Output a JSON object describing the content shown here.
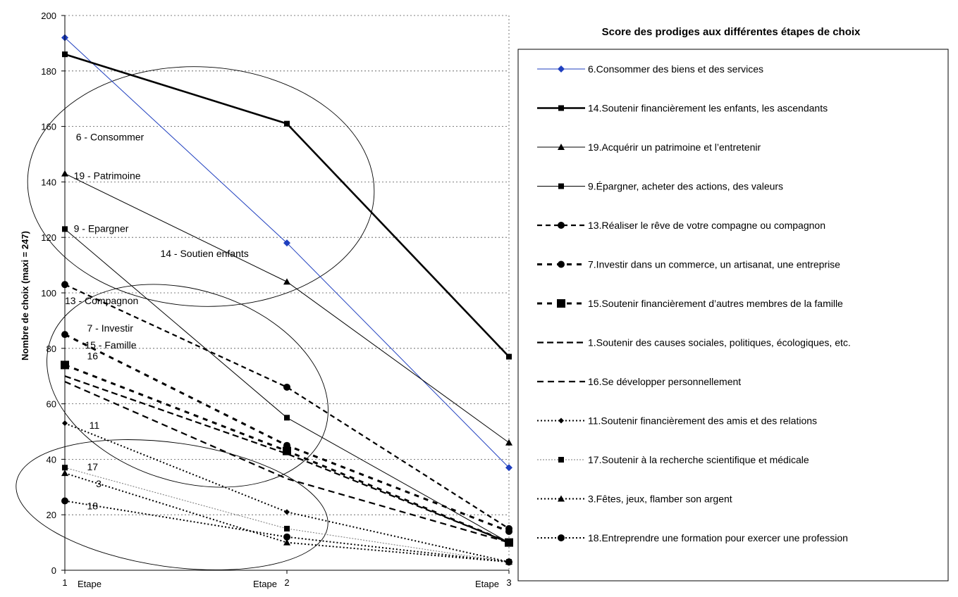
{
  "chart_data": {
    "type": "line",
    "title": "Score des prodiges aux différentes étapes de choix",
    "ylabel": "Nombre de choix (maxi = 247)",
    "ylim": [
      0,
      200
    ],
    "yticks": [
      0,
      20,
      40,
      60,
      80,
      100,
      120,
      140,
      160,
      180,
      200
    ],
    "x": [
      1,
      2,
      3
    ],
    "x_tick_labels": [
      "1",
      "2",
      "3"
    ],
    "x_stage_labels": [
      "Etape",
      "Etape",
      "Etape"
    ],
    "grid": "horizontal dotted",
    "legend_position": "right",
    "series": [
      {
        "name": "6.Consommer des biens et des services",
        "values": [
          192,
          118,
          37
        ],
        "color": "#1f3fbf",
        "marker": "diamond",
        "dash": "",
        "width": 1,
        "marker_color": "#1f3fbf"
      },
      {
        "name": "14.Soutenir financièrement les enfants, les ascendants",
        "values": [
          186,
          161,
          77
        ],
        "color": "#000000",
        "marker": "square",
        "dash": "",
        "width": 2.6,
        "marker_color": "#000000"
      },
      {
        "name": "19.Acquérir un patrimoine et l’entretenir",
        "values": [
          143,
          104,
          46
        ],
        "color": "#000000",
        "marker": "triangle",
        "dash": "",
        "width": 1,
        "marker_color": "#000000"
      },
      {
        "name": "9.Épargner, acheter des actions, des valeurs",
        "values": [
          123,
          55,
          10
        ],
        "color": "#000000",
        "marker": "square",
        "dash": "",
        "width": 1,
        "marker_color": "#000000"
      },
      {
        "name": "13.Réaliser le rêve de votre compagne ou compagnon",
        "values": [
          103,
          66,
          15
        ],
        "color": "#000000",
        "marker": "circle",
        "dash": "7,5",
        "width": 2.2,
        "marker_color": "#000000"
      },
      {
        "name": "7.Investir dans un commerce, un artisanat, une entreprise",
        "values": [
          85,
          45,
          14
        ],
        "color": "#000000",
        "marker": "circle",
        "dash": "7,7",
        "width": 3,
        "marker_color": "#000000"
      },
      {
        "name": "15.Soutenir financièrement d’autres membres de la famille",
        "values": [
          74,
          43,
          10
        ],
        "color": "#000000",
        "marker": "square-big",
        "dash": "7,7",
        "width": 3,
        "marker_color": "#000000"
      },
      {
        "name": "1.Soutenir des causes sociales, politiques, écologiques, etc.",
        "values": [
          70,
          42,
          10
        ],
        "color": "#000000",
        "marker": "none",
        "dash": "9,5",
        "width": 2.2,
        "marker_color": "#000000"
      },
      {
        "name": "16.Se développer personnellement",
        "values": [
          68,
          33,
          10
        ],
        "color": "#000000",
        "marker": "none",
        "dash": "9,6",
        "width": 2.2,
        "marker_color": "#000000"
      },
      {
        "name": "11.Soutenir financièrement des amis et des relations",
        "values": [
          53,
          21,
          3
        ],
        "color": "#000000",
        "marker": "diamond-small",
        "dash": "2,3",
        "width": 2,
        "marker_color": "#000000"
      },
      {
        "name": "17.Soutenir à la recherche scientifique et médicale",
        "values": [
          37,
          15,
          3
        ],
        "color": "#777777",
        "marker": "square",
        "dash": "2,2",
        "width": 1,
        "marker_color": "#000000"
      },
      {
        "name": "3.Fêtes, jeux, flamber son argent",
        "values": [
          35,
          10,
          3
        ],
        "color": "#000000",
        "marker": "triangle",
        "dash": "2,3",
        "width": 2,
        "marker_color": "#000000"
      },
      {
        "name": "18.Entreprendre une formation pour exercer une profession",
        "values": [
          25,
          12,
          3
        ],
        "color": "#000000",
        "marker": "circle",
        "dash": "2,3",
        "width": 2,
        "marker_color": "#000000"
      }
    ],
    "annotations": [
      {
        "text": "14 - Soutien enfants",
        "x": 1.43,
        "y": 113
      },
      {
        "text": "6 - Consommer",
        "x": 1.05,
        "y": 155
      },
      {
        "text": "19 - Patrimoine",
        "x": 1.04,
        "y": 141
      },
      {
        "text": "9 - Epargner",
        "x": 1.04,
        "y": 122
      },
      {
        "text": "13 - Compagnon",
        "x": 1.0,
        "y": 96
      },
      {
        "text": "7 - Investir",
        "x": 1.1,
        "y": 86
      },
      {
        "text": "15 - Famille",
        "x": 1.09,
        "y": 80
      },
      {
        "text": "16",
        "x": 1.1,
        "y": 76
      },
      {
        "text": "11",
        "x": 1.11,
        "y": 51
      },
      {
        "text": "17",
        "x": 1.1,
        "y": 36
      },
      {
        "text": "3",
        "x": 1.14,
        "y": 30
      },
      {
        "text": "18",
        "x": 1.1,
        "y": 22
      }
    ]
  }
}
